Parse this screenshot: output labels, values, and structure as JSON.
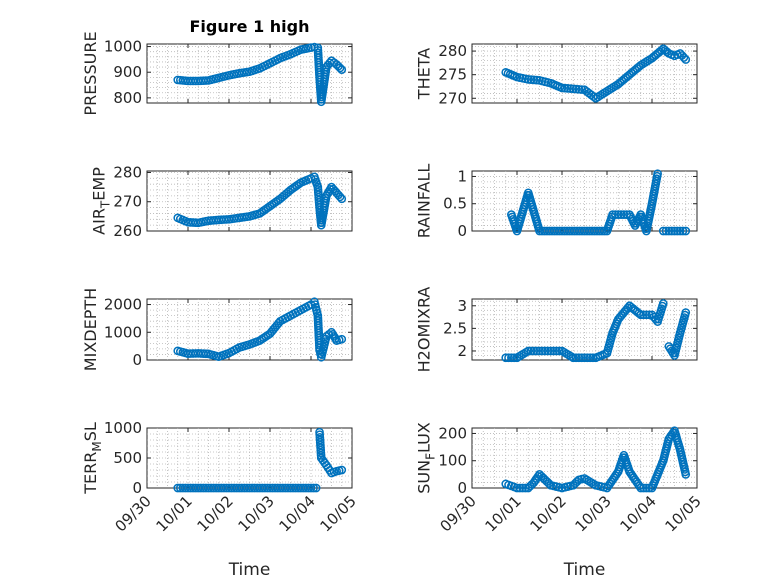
{
  "chart_data": [
    {
      "type": "scatter",
      "title": "Figure 1 high",
      "ylabel": "PRESSURE",
      "xlabel": "",
      "xlim": [
        "09/30",
        "10/05"
      ],
      "ylim": [
        780,
        1010
      ],
      "yticks": [
        800,
        900,
        1000
      ],
      "ytick_labels": [
        "800",
        "900",
        "1000"
      ],
      "xticks": [
        "09/30",
        "10/01",
        "10/02",
        "10/03",
        "10/04",
        "10/05"
      ],
      "xtick_labels": [],
      "grid": "on",
      "marker": "open-circle",
      "color": "#0072bd",
      "series": [
        {
          "x": [
            "09/30 18:00",
            "10/01 00:00",
            "10/01 06:00",
            "10/01 12:00",
            "10/01 18:00",
            "10/02 00:00",
            "10/02 06:00",
            "10/02 12:00",
            "10/02 18:00",
            "10/03 00:00",
            "10/03 06:00",
            "10/03 12:00",
            "10/03 18:00",
            "10/04 00:00",
            "10/04 02:00",
            "10/04 04:00",
            "10/04 05:00",
            "10/04 06:00",
            "10/04 09:00",
            "10/04 12:00",
            "10/04 15:00",
            "10/04 18:00"
          ],
          "y": [
            870,
            866,
            866,
            868,
            878,
            888,
            896,
            902,
            915,
            935,
            955,
            970,
            988,
            996,
            998,
            995,
            880,
            785,
            920,
            945,
            930,
            910
          ]
        }
      ]
    },
    {
      "type": "scatter",
      "title": "",
      "ylabel": "THETA",
      "xlabel": "",
      "xlim": [
        "09/30",
        "10/05"
      ],
      "ylim": [
        269,
        281.5
      ],
      "yticks": [
        270,
        275,
        280
      ],
      "ytick_labels": [
        "270",
        "275",
        "280"
      ],
      "xticks": [
        "09/30",
        "10/01",
        "10/02",
        "10/03",
        "10/04",
        "10/05"
      ],
      "xtick_labels": [],
      "grid": "on",
      "marker": "open-circle",
      "color": "#0072bd",
      "series": [
        {
          "x": [
            "09/30 18:00",
            "10/01 00:00",
            "10/01 06:00",
            "10/01 12:00",
            "10/01 18:00",
            "10/02 00:00",
            "10/02 06:00",
            "10/02 12:00",
            "10/02 18:00",
            "10/03 00:00",
            "10/03 06:00",
            "10/03 12:00",
            "10/03 18:00",
            "10/04 00:00",
            "10/04 06:00",
            "10/04 09:00",
            "10/04 12:00",
            "10/04 15:00",
            "10/04 18:00"
          ],
          "y": [
            275.5,
            274.5,
            274.0,
            273.8,
            273.2,
            272.2,
            272.0,
            271.8,
            270.0,
            271.5,
            273.0,
            275.0,
            277.0,
            278.5,
            280.5,
            279.5,
            279.0,
            279.5,
            278.2
          ]
        }
      ]
    },
    {
      "type": "scatter",
      "title": "",
      "ylabel": "AIR_TEMP",
      "xlabel": "",
      "xlim": [
        "09/30",
        "10/05"
      ],
      "ylim": [
        260,
        280.5
      ],
      "yticks": [
        260,
        270,
        280
      ],
      "ytick_labels": [
        "260",
        "270",
        "280"
      ],
      "xticks": [
        "09/30",
        "10/01",
        "10/02",
        "10/03",
        "10/04",
        "10/05"
      ],
      "xtick_labels": [],
      "grid": "on",
      "marker": "open-circle",
      "color": "#0072bd",
      "series": [
        {
          "x": [
            "09/30 18:00",
            "10/01 00:00",
            "10/01 06:00",
            "10/01 12:00",
            "10/01 18:00",
            "10/02 00:00",
            "10/02 06:00",
            "10/02 12:00",
            "10/02 18:00",
            "10/03 00:00",
            "10/03 06:00",
            "10/03 12:00",
            "10/03 18:00",
            "10/04 00:00",
            "10/04 02:00",
            "10/04 04:00",
            "10/04 05:00",
            "10/04 06:00",
            "10/04 09:00",
            "10/04 12:00",
            "10/04 15:00",
            "10/04 18:00"
          ],
          "y": [
            264.5,
            263.0,
            262.8,
            263.5,
            263.8,
            264.0,
            264.5,
            265.0,
            266.0,
            268.5,
            271.0,
            274.0,
            276.5,
            278.0,
            278.5,
            275.0,
            268.0,
            262.0,
            272.0,
            275.0,
            273.0,
            271.0
          ]
        }
      ]
    },
    {
      "type": "scatter",
      "title": "",
      "ylabel": "RAINFALL",
      "xlabel": "",
      "xlim": [
        "09/30",
        "10/05"
      ],
      "ylim": [
        0,
        1.1
      ],
      "yticks": [
        0,
        0.5,
        1
      ],
      "ytick_labels": [
        "0",
        "0.5",
        "1"
      ],
      "xticks": [
        "09/30",
        "10/01",
        "10/02",
        "10/03",
        "10/04",
        "10/05"
      ],
      "xtick_labels": [],
      "grid": "on",
      "marker": "open-circle",
      "color": "#0072bd",
      "series": [
        {
          "x": [
            "09/30 21:00",
            "10/01 00:00",
            "10/01 06:00",
            "10/01 12:00",
            "10/02 00:00",
            "10/02 12:00",
            "10/03 00:00",
            "10/03 03:00",
            "10/03 06:00",
            "10/03 12:00",
            "10/03 15:00",
            "10/03 18:00",
            "10/03 21:00",
            "10/04 00:00",
            "10/04 03:00",
            "10/04 06:00",
            "10/04 12:00",
            "10/04 18:00"
          ],
          "y": [
            0.3,
            0.0,
            0.7,
            0.0,
            0.0,
            0.0,
            0.0,
            0.3,
            0.3,
            0.3,
            0.1,
            0.3,
            0.0,
            0.5,
            1.05,
            0.0,
            0.0,
            0.0
          ]
        }
      ]
    },
    {
      "type": "scatter",
      "title": "",
      "ylabel": "MIXDEPTH",
      "xlabel": "",
      "xlim": [
        "09/30",
        "10/05"
      ],
      "ylim": [
        0,
        2200
      ],
      "yticks": [
        0,
        1000,
        2000
      ],
      "ytick_labels": [
        "0",
        "1000",
        "2000"
      ],
      "xticks": [
        "09/30",
        "10/01",
        "10/02",
        "10/03",
        "10/04",
        "10/05"
      ],
      "xtick_labels": [],
      "grid": "on",
      "marker": "open-circle",
      "color": "#0072bd",
      "series": [
        {
          "x": [
            "09/30 18:00",
            "10/01 00:00",
            "10/01 06:00",
            "10/01 12:00",
            "10/01 18:00",
            "10/02 00:00",
            "10/02 06:00",
            "10/02 12:00",
            "10/02 18:00",
            "10/03 00:00",
            "10/03 06:00",
            "10/03 12:00",
            "10/03 18:00",
            "10/04 00:00",
            "10/04 02:00",
            "10/04 04:00",
            "10/04 05:00",
            "10/04 06:00",
            "10/04 09:00",
            "10/04 12:00",
            "10/04 15:00",
            "10/04 18:00"
          ],
          "y": [
            330,
            230,
            240,
            220,
            120,
            250,
            450,
            560,
            700,
            950,
            1400,
            1600,
            1800,
            2000,
            2100,
            1600,
            350,
            100,
            850,
            1000,
            700,
            750
          ]
        }
      ]
    },
    {
      "type": "scatter",
      "title": "",
      "ylabel": "H2OMIXRA",
      "xlabel": "",
      "xlim": [
        "09/30",
        "10/05"
      ],
      "ylim": [
        1.8,
        3.15
      ],
      "yticks": [
        2,
        2.5,
        3
      ],
      "ytick_labels": [
        "2",
        "2.5",
        "3"
      ],
      "xticks": [
        "09/30",
        "10/01",
        "10/02",
        "10/03",
        "10/04",
        "10/05"
      ],
      "xtick_labels": [],
      "grid": "on",
      "marker": "open-circle",
      "color": "#0072bd",
      "series": [
        {
          "x": [
            "09/30 18:00",
            "10/01 00:00",
            "10/01 06:00",
            "10/01 12:00",
            "10/01 18:00",
            "10/02 00:00",
            "10/02 06:00",
            "10/02 12:00",
            "10/02 18:00",
            "10/03 00:00",
            "10/03 03:00",
            "10/03 06:00",
            "10/03 12:00",
            "10/03 18:00",
            "10/04 00:00",
            "10/04 03:00",
            "10/04 06:00",
            "10/04 09:00",
            "10/04 12:00",
            "10/04 15:00",
            "10/04 18:00"
          ],
          "y": [
            1.85,
            1.85,
            2.0,
            2.0,
            2.0,
            2.0,
            1.85,
            1.85,
            1.85,
            1.95,
            2.4,
            2.7,
            3.0,
            2.8,
            2.8,
            2.65,
            3.05,
            2.1,
            1.9,
            2.4,
            2.85
          ]
        }
      ]
    },
    {
      "type": "scatter",
      "title": "",
      "ylabel": "TERR_MSL",
      "xlabel": "Time",
      "xlim": [
        "09/30",
        "10/05"
      ],
      "ylim": [
        0,
        1000
      ],
      "yticks": [
        0,
        500,
        1000
      ],
      "ytick_labels": [
        "0",
        "500",
        "1000"
      ],
      "xticks": [
        "09/30",
        "10/01",
        "10/02",
        "10/03",
        "10/04",
        "10/05"
      ],
      "xtick_labels": [
        "09/30",
        "10/01",
        "10/02",
        "10/03",
        "10/04",
        "10/05"
      ],
      "grid": "on",
      "marker": "open-circle",
      "color": "#0072bd",
      "series": [
        {
          "x": [
            "09/30 18:00",
            "10/01 00:00",
            "10/01 12:00",
            "10/02 00:00",
            "10/02 12:00",
            "10/03 00:00",
            "10/03 12:00",
            "10/04 00:00",
            "10/04 03:00",
            "10/04 05:00",
            "10/04 06:00",
            "10/04 09:00",
            "10/04 12:00",
            "10/04 15:00",
            "10/04 18:00"
          ],
          "y": [
            0,
            0,
            0,
            0,
            0,
            0,
            0,
            0,
            0,
            930,
            500,
            380,
            250,
            280,
            300
          ]
        }
      ]
    },
    {
      "type": "scatter",
      "title": "",
      "ylabel": "SUN_FLUX",
      "xlabel": "Time",
      "xlim": [
        "09/30",
        "10/05"
      ],
      "ylim": [
        0,
        220
      ],
      "yticks": [
        0,
        100,
        200
      ],
      "ytick_labels": [
        "0",
        "100",
        "200"
      ],
      "xticks": [
        "09/30",
        "10/01",
        "10/02",
        "10/03",
        "10/04",
        "10/05"
      ],
      "xtick_labels": [
        "09/30",
        "10/01",
        "10/02",
        "10/03",
        "10/04",
        "10/05"
      ],
      "grid": "on",
      "marker": "open-circle",
      "color": "#0072bd",
      "series": [
        {
          "x": [
            "09/30 18:00",
            "10/01 00:00",
            "10/01 06:00",
            "10/01 09:00",
            "10/01 12:00",
            "10/01 18:00",
            "10/02 00:00",
            "10/02 06:00",
            "10/02 09:00",
            "10/02 12:00",
            "10/02 18:00",
            "10/03 00:00",
            "10/03 06:00",
            "10/03 09:00",
            "10/03 12:00",
            "10/03 18:00",
            "10/04 00:00",
            "10/04 06:00",
            "10/04 09:00",
            "10/04 12:00",
            "10/04 15:00",
            "10/04 18:00"
          ],
          "y": [
            15,
            0,
            0,
            20,
            50,
            10,
            0,
            10,
            30,
            35,
            10,
            0,
            60,
            120,
            60,
            0,
            0,
            100,
            180,
            210,
            140,
            50
          ]
        }
      ]
    }
  ]
}
